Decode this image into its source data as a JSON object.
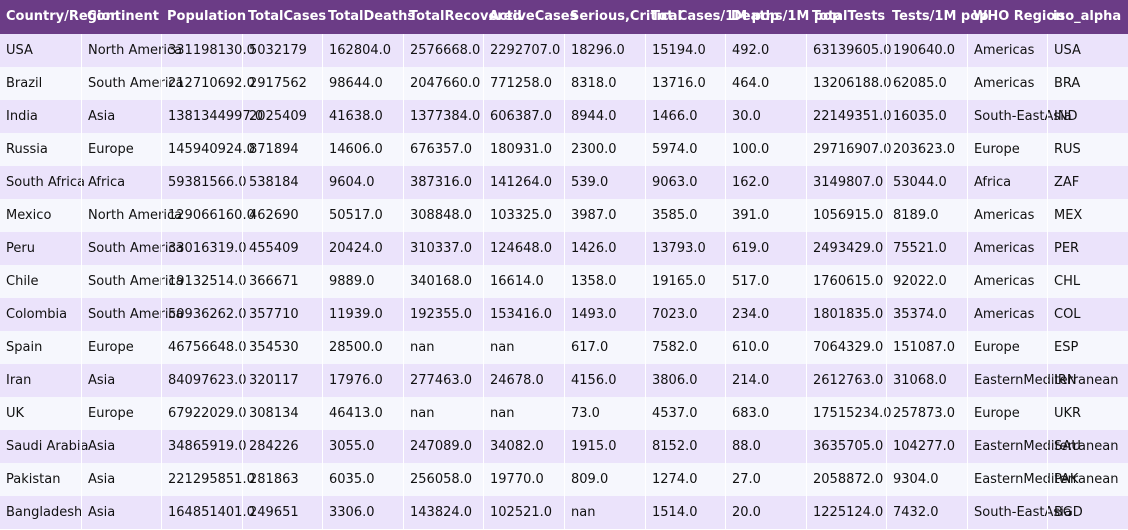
{
  "table": {
    "columns": [
      "Country/Region",
      "Continent",
      "Population",
      "TotalCases",
      "TotalDeaths",
      "TotalRecovered",
      "ActiveCases",
      "Serious,Critical",
      "Tot Cases/1M pop",
      "Deaths/1M pop",
      "TotalTests",
      "Tests/1M pop",
      "WHO Region",
      "iso_alpha"
    ],
    "rows": [
      [
        "USA",
        "North America",
        "331198130.0",
        "5032179",
        "162804.0",
        "2576668.0",
        "2292707.0",
        "18296.0",
        "15194.0",
        "492.0",
        "63139605.0",
        "190640.0",
        "Americas",
        "USA"
      ],
      [
        "Brazil",
        "South America",
        "212710692.0",
        "2917562",
        "98644.0",
        "2047660.0",
        "771258.0",
        "8318.0",
        "13716.0",
        "464.0",
        "13206188.0",
        "62085.0",
        "Americas",
        "BRA"
      ],
      [
        "India",
        "Asia",
        "1381344997.0",
        "2025409",
        "41638.0",
        "1377384.0",
        "606387.0",
        "8944.0",
        "1466.0",
        "30.0",
        "22149351.0",
        "16035.0",
        "South-EastAsia",
        "IND"
      ],
      [
        "Russia",
        "Europe",
        "145940924.0",
        "871894",
        "14606.0",
        "676357.0",
        "180931.0",
        "2300.0",
        "5974.0",
        "100.0",
        "29716907.0",
        "203623.0",
        "Europe",
        "RUS"
      ],
      [
        "South Africa",
        "Africa",
        "59381566.0",
        "538184",
        "9604.0",
        "387316.0",
        "141264.0",
        "539.0",
        "9063.0",
        "162.0",
        "3149807.0",
        "53044.0",
        "Africa",
        "ZAF"
      ],
      [
        "Mexico",
        "North America",
        "129066160.0",
        "462690",
        "50517.0",
        "308848.0",
        "103325.0",
        "3987.0",
        "3585.0",
        "391.0",
        "1056915.0",
        "8189.0",
        "Americas",
        "MEX"
      ],
      [
        "Peru",
        "South America",
        "33016319.0",
        "455409",
        "20424.0",
        "310337.0",
        "124648.0",
        "1426.0",
        "13793.0",
        "619.0",
        "2493429.0",
        "75521.0",
        "Americas",
        "PER"
      ],
      [
        "Chile",
        "South America",
        "19132514.0",
        "366671",
        "9889.0",
        "340168.0",
        "16614.0",
        "1358.0",
        "19165.0",
        "517.0",
        "1760615.0",
        "92022.0",
        "Americas",
        "CHL"
      ],
      [
        "Colombia",
        "South America",
        "50936262.0",
        "357710",
        "11939.0",
        "192355.0",
        "153416.0",
        "1493.0",
        "7023.0",
        "234.0",
        "1801835.0",
        "35374.0",
        "Americas",
        "COL"
      ],
      [
        "Spain",
        "Europe",
        "46756648.0",
        "354530",
        "28500.0",
        "nan",
        "nan",
        "617.0",
        "7582.0",
        "610.0",
        "7064329.0",
        "151087.0",
        "Europe",
        "ESP"
      ],
      [
        "Iran",
        "Asia",
        "84097623.0",
        "320117",
        "17976.0",
        "277463.0",
        "24678.0",
        "4156.0",
        "3806.0",
        "214.0",
        "2612763.0",
        "31068.0",
        "EasternMediterranean",
        "IRN"
      ],
      [
        "UK",
        "Europe",
        "67922029.0",
        "308134",
        "46413.0",
        "nan",
        "nan",
        "73.0",
        "4537.0",
        "683.0",
        "17515234.0",
        "257873.0",
        "Europe",
        "UKR"
      ],
      [
        "Saudi Arabia",
        "Asia",
        "34865919.0",
        "284226",
        "3055.0",
        "247089.0",
        "34082.0",
        "1915.0",
        "8152.0",
        "88.0",
        "3635705.0",
        "104277.0",
        "EasternMediterranean",
        "SAU"
      ],
      [
        "Pakistan",
        "Asia",
        "221295851.0",
        "281863",
        "6035.0",
        "256058.0",
        "19770.0",
        "809.0",
        "1274.0",
        "27.0",
        "2058872.0",
        "9304.0",
        "EasternMediterranean",
        "PAK"
      ],
      [
        "Bangladesh",
        "Asia",
        "164851401.0",
        "249651",
        "3306.0",
        "143824.0",
        "102521.0",
        "nan",
        "1514.0",
        "20.0",
        "1225124.0",
        "7432.0",
        "South-EastAsia",
        "BGD"
      ]
    ]
  },
  "colors": {
    "header_bg": "#6b3c86",
    "row_odd_bg": "#ebe3fb",
    "row_even_bg": "#f6f7fd"
  }
}
